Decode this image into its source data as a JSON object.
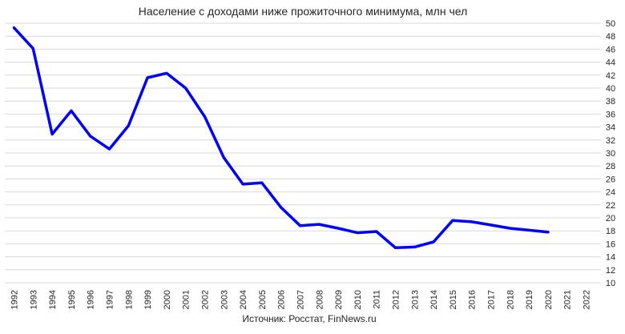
{
  "chart_data": {
    "type": "line",
    "title": "Население с доходами ниже прожиточного минимума, млн чел",
    "source": "Источник: Росстат, FinNews.ru",
    "xlabel": "",
    "ylabel": "",
    "x": [
      1992,
      1993,
      1994,
      1995,
      1996,
      1997,
      1998,
      1999,
      2000,
      2001,
      2002,
      2003,
      2004,
      2005,
      2006,
      2007,
      2008,
      2009,
      2010,
      2011,
      2012,
      2013,
      2014,
      2015,
      2016,
      2017,
      2018,
      2019,
      2020
    ],
    "x_ticks": [
      "1992",
      "1993",
      "1994",
      "1995",
      "1996",
      "1997",
      "1998",
      "1999",
      "2000",
      "2001",
      "2002",
      "2003",
      "2004",
      "2005",
      "2006",
      "2007",
      "2008",
      "2009",
      "2010",
      "2011",
      "2012",
      "2013",
      "2014",
      "2015",
      "2016",
      "2017",
      "2018",
      "2019",
      "2020",
      "2021",
      "2022"
    ],
    "series": [
      {
        "values": [
          49.3,
          46.1,
          32.9,
          36.5,
          32.6,
          30.6,
          34.2,
          41.6,
          42.3,
          40.0,
          35.6,
          29.3,
          25.2,
          25.4,
          21.6,
          18.8,
          19.0,
          18.4,
          17.7,
          17.9,
          15.4,
          15.5,
          16.3,
          19.6,
          19.4,
          18.9,
          18.4,
          18.1,
          17.8
        ],
        "color": "#0000ff"
      }
    ],
    "y_ticks": [
      10,
      12,
      14,
      16,
      18,
      20,
      22,
      24,
      26,
      28,
      30,
      32,
      34,
      36,
      38,
      40,
      42,
      44,
      46,
      48,
      50
    ],
    "ylim": [
      10,
      50
    ],
    "y_axis_side": "right",
    "grid": true,
    "legend": "none"
  }
}
